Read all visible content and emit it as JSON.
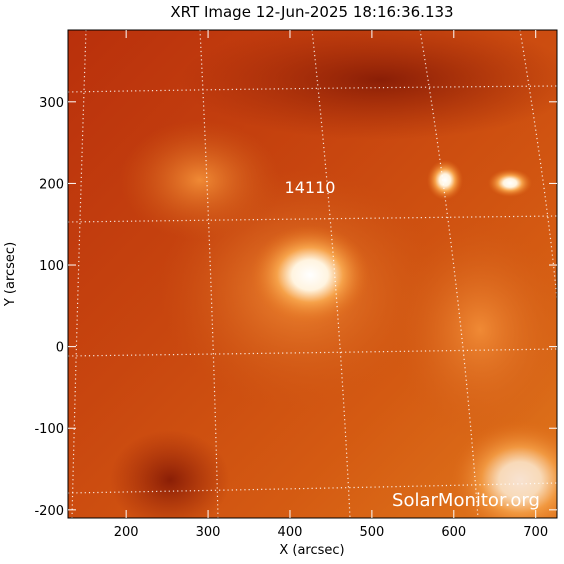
{
  "chart_data": {
    "type": "image",
    "title": "XRT Image 12-Jun-2025 18:16:36.133",
    "x_label": "X (arcsec)",
    "y_label": "Y (arcsec)",
    "xlim": [
      129,
      726
    ],
    "ylim": [
      -210,
      388
    ],
    "xticks": [
      200,
      300,
      400,
      500,
      600,
      700
    ],
    "yticks": [
      -200,
      -100,
      0,
      100,
      200,
      300
    ],
    "annotation": "14110",
    "watermark": "SolarMonitor.org"
  }
}
